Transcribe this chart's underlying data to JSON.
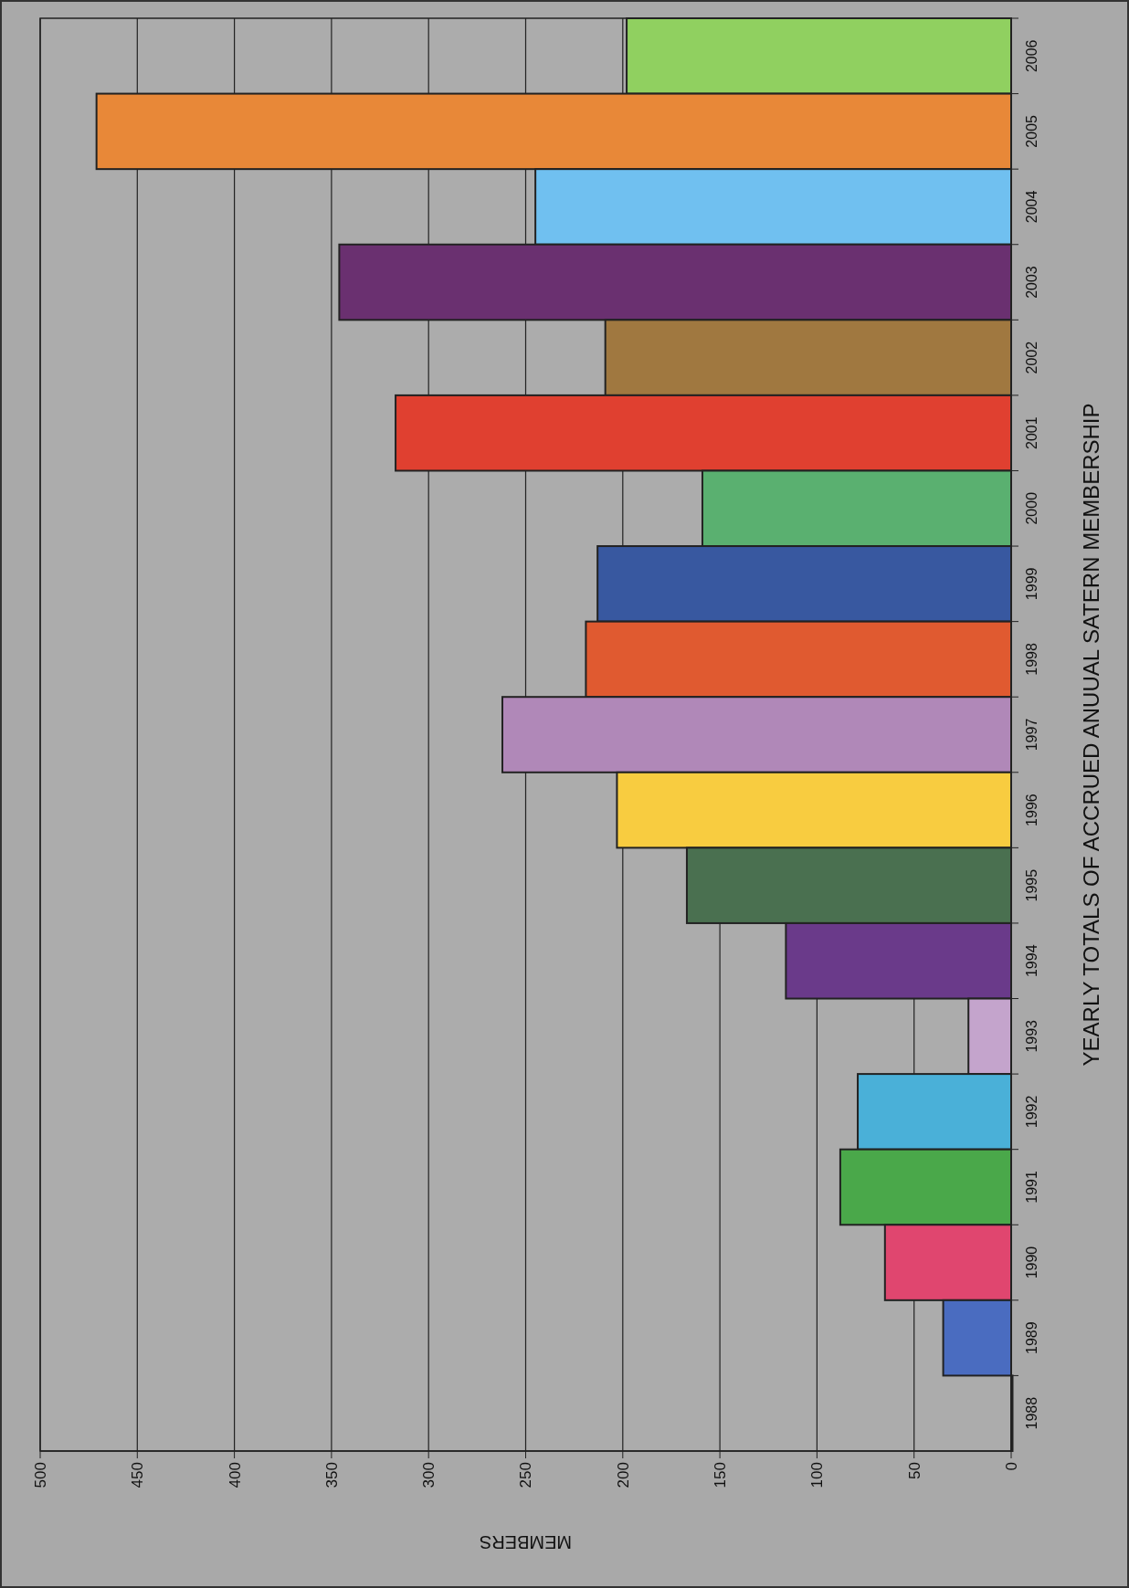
{
  "chart_data": {
    "type": "bar",
    "orientation": "horizontal",
    "xlabel": "MEMBERS",
    "ylabel": "YEARLY TOTALS OF ACCRUED ANUUAL SATERN MEMBERSHIP",
    "categories": [
      "2006",
      "2005",
      "2004",
      "2003",
      "2002",
      "2001",
      "2000",
      "1999",
      "1998",
      "1997",
      "1996",
      "1995",
      "1994",
      "1993",
      "1992",
      "1991",
      "1990",
      "1989",
      "1988"
    ],
    "values": [
      198,
      471,
      245,
      346,
      209,
      317,
      159,
      213,
      219,
      262,
      203,
      167,
      116,
      22,
      79,
      88,
      65,
      35,
      0
    ],
    "colors": [
      "#90d060",
      "#e88838",
      "#70c0f0",
      "#6a3070",
      "#a07840",
      "#e04030",
      "#5ab070",
      "#3858a0",
      "#e05a30",
      "#b088b8",
      "#f8cc40",
      "#4a7050",
      "#6a3a8a",
      "#c4a4cc",
      "#4ab0d8",
      "#4aa84a",
      "#e0466f",
      "#4a6cc0",
      "#111111"
    ],
    "xlim": [
      500,
      0
    ],
    "xticks": [
      0,
      50,
      100,
      150,
      200,
      250,
      300,
      350,
      400,
      450,
      500
    ],
    "grid": "x"
  }
}
